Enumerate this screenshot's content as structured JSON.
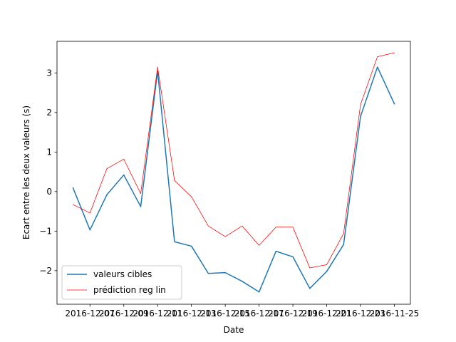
{
  "chart_data": {
    "type": "line",
    "xlabel": "Date",
    "ylabel": "Ecart entre les deux valeurs (s)",
    "x_tick_labels": [
      "2016-12-07",
      "2016-12-09",
      "2016-12-11",
      "2016-12-13",
      "2016-12-15",
      "2016-12-17",
      "2016-12-19",
      "2016-12-21",
      "2016-12-23",
      "2016-11-25"
    ],
    "y_ticks": [
      -2,
      -1,
      0,
      1,
      2,
      3
    ],
    "y_tick_labels": [
      "−2",
      "−1",
      "0",
      "1",
      "2",
      "3"
    ],
    "ylim": [
      -2.85,
      3.8
    ],
    "grid": false,
    "legend_position": "lower-left",
    "series": [
      {
        "name": "valeurs cibles",
        "color": "#1f77b4",
        "values": [
          0.09,
          -0.97,
          -0.08,
          0.42,
          -0.38,
          3.05,
          -1.27,
          -1.38,
          -2.07,
          -2.05,
          -2.27,
          -2.54,
          -1.51,
          -1.65,
          -2.45,
          -2.02,
          -1.34,
          1.9,
          3.15,
          2.22
        ]
      },
      {
        "name": "prédiction reg lin",
        "color": "#ff0000",
        "values": [
          -0.33,
          -0.54,
          0.58,
          0.82,
          -0.05,
          3.15,
          0.28,
          -0.13,
          -0.87,
          -1.14,
          -0.87,
          -1.36,
          -0.9,
          -0.9,
          -1.93,
          -1.85,
          -1.06,
          2.2,
          3.41,
          3.51
        ]
      }
    ]
  }
}
